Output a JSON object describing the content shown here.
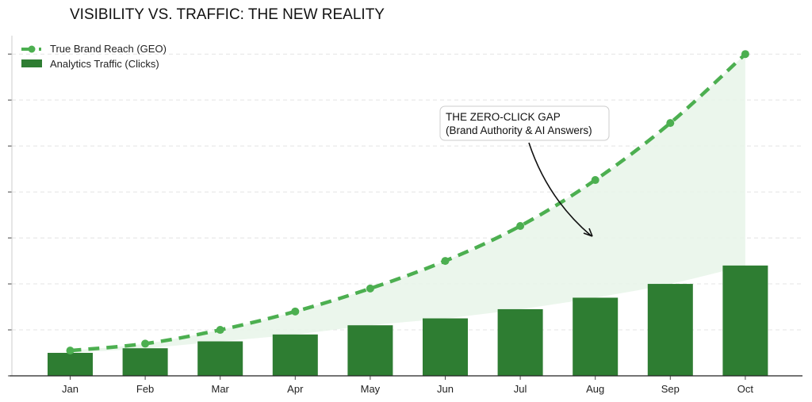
{
  "chart_data": {
    "type": "bar",
    "title": "VISIBILITY VS. TRAFFIC: THE NEW REALITY",
    "xlabel": "",
    "ylabel": "",
    "categories": [
      "Jan",
      "Feb",
      "Mar",
      "Apr",
      "May",
      "Jun",
      "Jul",
      "Aug",
      "Sep",
      "Oct"
    ],
    "series": [
      {
        "name": "True Brand Reach (GEO)",
        "type": "line",
        "style": "dashed-with-markers",
        "color": "#4caf50",
        "values": [
          5.5,
          7,
          10,
          14,
          19,
          25,
          32.6,
          42.6,
          55,
          70
        ]
      },
      {
        "name": "Analytics Traffic (Clicks)",
        "type": "bar",
        "color": "#2e7d32",
        "values": [
          5,
          6,
          7.5,
          9,
          11,
          12.5,
          14.5,
          17,
          20,
          24
        ]
      }
    ],
    "fill_between": {
      "color": "#e8f5e9"
    },
    "ylim": [
      0,
      74
    ],
    "yticks": [
      0,
      10,
      20,
      30,
      40,
      50,
      60,
      70
    ],
    "ytick_labels_shown": false,
    "grid": "horizontal dashed",
    "legend": "top-left",
    "annotation": {
      "lines": [
        "THE ZERO-CLICK GAP",
        "(Brand Authority & AI Answers)"
      ],
      "points_to": "Aug gap"
    }
  }
}
